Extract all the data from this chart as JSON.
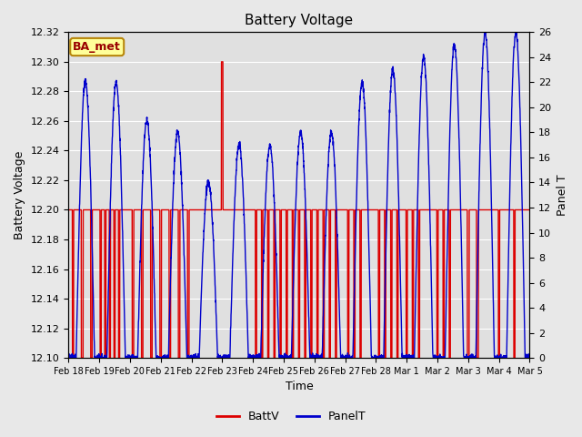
{
  "title": "Battery Voltage",
  "xlabel": "Time",
  "ylabel_left": "Battery Voltage",
  "ylabel_right": "Panel T",
  "ylim_left": [
    12.1,
    12.32
  ],
  "ylim_right": [
    0,
    26
  ],
  "fig_bg_color": "#e8e8e8",
  "plot_bg_color": "#e0e0e0",
  "annotation_text": "BA_met",
  "annotation_bg": "#ffff99",
  "annotation_border": "#b8860b",
  "batt_color": "#dd0000",
  "panel_color": "#0000cc",
  "legend_batt": "BattV",
  "legend_panel": "PanelT",
  "xtick_labels": [
    "Feb 18",
    "Feb 19",
    "Feb 20",
    "Feb 21",
    "Feb 22",
    "Feb 23",
    "Feb 24",
    "Feb 25",
    "Feb 26",
    "Feb 27",
    "Feb 28",
    "Mar 1",
    "Mar 2",
    "Mar 3",
    "Mar 4",
    "Mar 5"
  ],
  "yticks_left": [
    12.1,
    12.12,
    12.14,
    12.16,
    12.18,
    12.2,
    12.22,
    12.24,
    12.26,
    12.28,
    12.3,
    12.32
  ],
  "yticks_right": [
    0,
    2,
    4,
    6,
    8,
    10,
    12,
    14,
    16,
    18,
    20,
    22,
    24,
    26
  ],
  "grid_color": "#ffffff",
  "batt_base": 12.2,
  "batt_low": 12.1,
  "batt_spike": 12.3
}
